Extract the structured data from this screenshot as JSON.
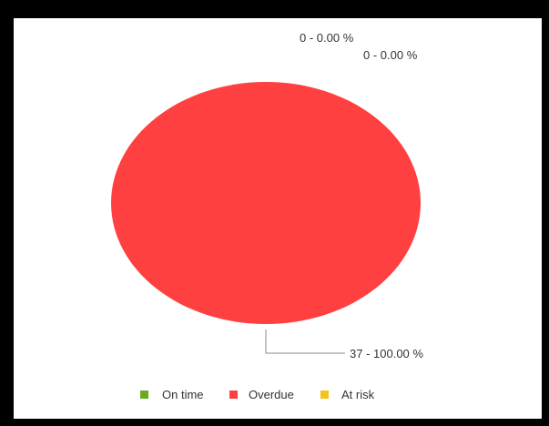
{
  "chart_data": {
    "type": "pie",
    "categories": [
      "On time",
      "Overdue",
      "At risk"
    ],
    "values": [
      0,
      37,
      0
    ],
    "percentages": [
      0.0,
      100.0,
      0.0
    ],
    "colors": [
      "#6aaa1e",
      "#ff4040",
      "#f6c21c"
    ],
    "data_labels": [
      "0 - 0.00 %",
      "37 - 100.00 %",
      "0 - 0.00 %"
    ],
    "legend": {
      "placement": "bottom",
      "items": [
        {
          "label": "On time",
          "color": "#6aaa1e"
        },
        {
          "label": "Overdue",
          "color": "#ff4040"
        },
        {
          "label": "At risk",
          "color": "#f6c21c"
        }
      ]
    },
    "title": ""
  }
}
